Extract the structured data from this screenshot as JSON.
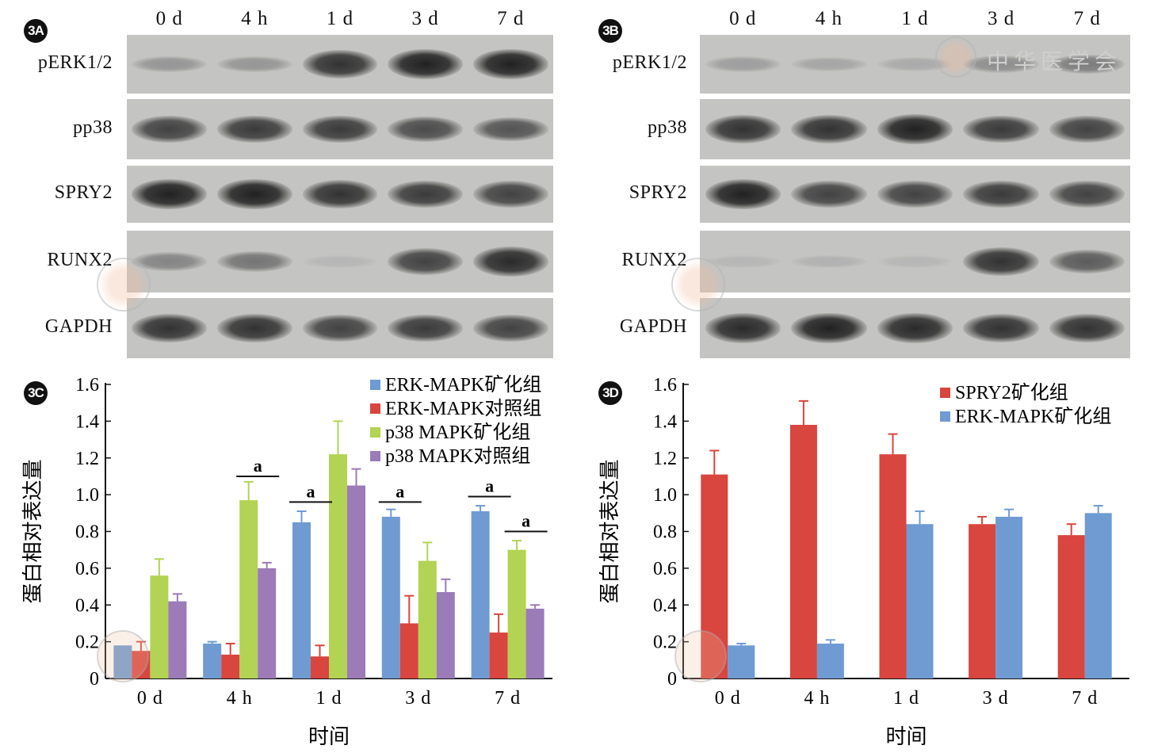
{
  "panels": {
    "A": {
      "label": "3A"
    },
    "B": {
      "label": "3B"
    },
    "C": {
      "label": "3C"
    },
    "D": {
      "label": "3D"
    }
  },
  "blots": {
    "lanes": [
      "0 d",
      "4 h",
      "1 d",
      "3 d",
      "7 d"
    ],
    "rows": [
      "pERK1/2",
      "pp38",
      "SPRY2",
      "RUNX2",
      "GAPDH"
    ],
    "watermark_text": "中华医学会",
    "A_intensity": [
      [
        0.25,
        0.25,
        0.85,
        0.95,
        0.95
      ],
      [
        0.75,
        0.8,
        0.8,
        0.7,
        0.65
      ],
      [
        0.95,
        0.95,
        0.85,
        0.8,
        0.75
      ],
      [
        0.35,
        0.45,
        0.05,
        0.75,
        0.9
      ],
      [
        0.85,
        0.85,
        0.75,
        0.8,
        0.75
      ]
    ],
    "B_intensity": [
      [
        0.2,
        0.15,
        0.12,
        0.3,
        0.4
      ],
      [
        0.85,
        0.85,
        0.95,
        0.8,
        0.75
      ],
      [
        0.95,
        0.75,
        0.75,
        0.8,
        0.75
      ],
      [
        0.05,
        0.08,
        0.05,
        0.85,
        0.6
      ],
      [
        0.9,
        0.95,
        0.9,
        0.85,
        0.85
      ]
    ]
  },
  "colors": {
    "blue": "#6f9bd2",
    "red": "#d9453f",
    "green": "#b2d353",
    "purple": "#9b7bb8"
  },
  "chart_data": [
    {
      "type": "bar",
      "categories": [
        "0 d",
        "4 h",
        "1 d",
        "3 d",
        "7 d"
      ],
      "ylim": [
        0,
        1.6
      ],
      "yticks": [
        "0",
        "0.2",
        "0.4",
        "0.6",
        "0.8",
        "1.0",
        "1.2",
        "1.4",
        "1.6"
      ],
      "xlabel": "时间",
      "ylabel": "蛋白相对表达量",
      "legend_position": "top-right",
      "series": [
        {
          "name": "ERK-MAPK矿化组",
          "color": "#6f9bd2",
          "values": [
            0.18,
            0.19,
            0.85,
            0.88,
            0.91
          ],
          "errors": [
            0.0,
            0.01,
            0.06,
            0.04,
            0.03
          ]
        },
        {
          "name": "ERK-MAPK对照组",
          "color": "#d9453f",
          "values": [
            0.15,
            0.13,
            0.12,
            0.3,
            0.25
          ],
          "errors": [
            0.05,
            0.06,
            0.06,
            0.15,
            0.1
          ]
        },
        {
          "name": "p38 MAPK矿化组",
          "color": "#b2d353",
          "values": [
            0.56,
            0.97,
            1.22,
            0.64,
            0.7
          ],
          "errors": [
            0.09,
            0.1,
            0.18,
            0.1,
            0.05
          ]
        },
        {
          "name": "p38 MAPK对照组",
          "color": "#9b7bb8",
          "values": [
            0.42,
            0.6,
            1.05,
            0.47,
            0.38
          ],
          "errors": [
            0.04,
            0.03,
            0.09,
            0.07,
            0.02
          ]
        }
      ],
      "annotations": [
        {
          "text": "a",
          "category": 1,
          "from_series": 2,
          "to_series": 3,
          "y": 1.1
        },
        {
          "text": "a",
          "category": 2,
          "from_series": 0,
          "to_series": 1,
          "y": 0.96
        },
        {
          "text": "a",
          "category": 3,
          "from_series": 0,
          "to_series": 1,
          "y": 0.96
        },
        {
          "text": "a",
          "category": 4,
          "from_series": 0,
          "to_series": 1,
          "y": 0.99
        },
        {
          "text": "a",
          "category": 4,
          "from_series": 2,
          "to_series": 3,
          "y": 0.8
        }
      ]
    },
    {
      "type": "bar",
      "categories": [
        "0 d",
        "4 h",
        "1 d",
        "3 d",
        "7 d"
      ],
      "ylim": [
        0,
        1.6
      ],
      "yticks": [
        "0",
        "0.2",
        "0.4",
        "0.6",
        "0.8",
        "1.0",
        "1.2",
        "1.4",
        "1.6"
      ],
      "xlabel": "时间",
      "ylabel": "蛋白相对表达量",
      "legend_position": "top-right",
      "series": [
        {
          "name": "SPRY2矿化组",
          "color": "#d9453f",
          "values": [
            1.11,
            1.38,
            1.22,
            0.84,
            0.78
          ],
          "errors": [
            0.13,
            0.13,
            0.11,
            0.04,
            0.06
          ]
        },
        {
          "name": "ERK-MAPK矿化组",
          "color": "#6f9bd2",
          "values": [
            0.18,
            0.19,
            0.84,
            0.88,
            0.9
          ],
          "errors": [
            0.01,
            0.02,
            0.07,
            0.04,
            0.04
          ]
        }
      ]
    }
  ]
}
